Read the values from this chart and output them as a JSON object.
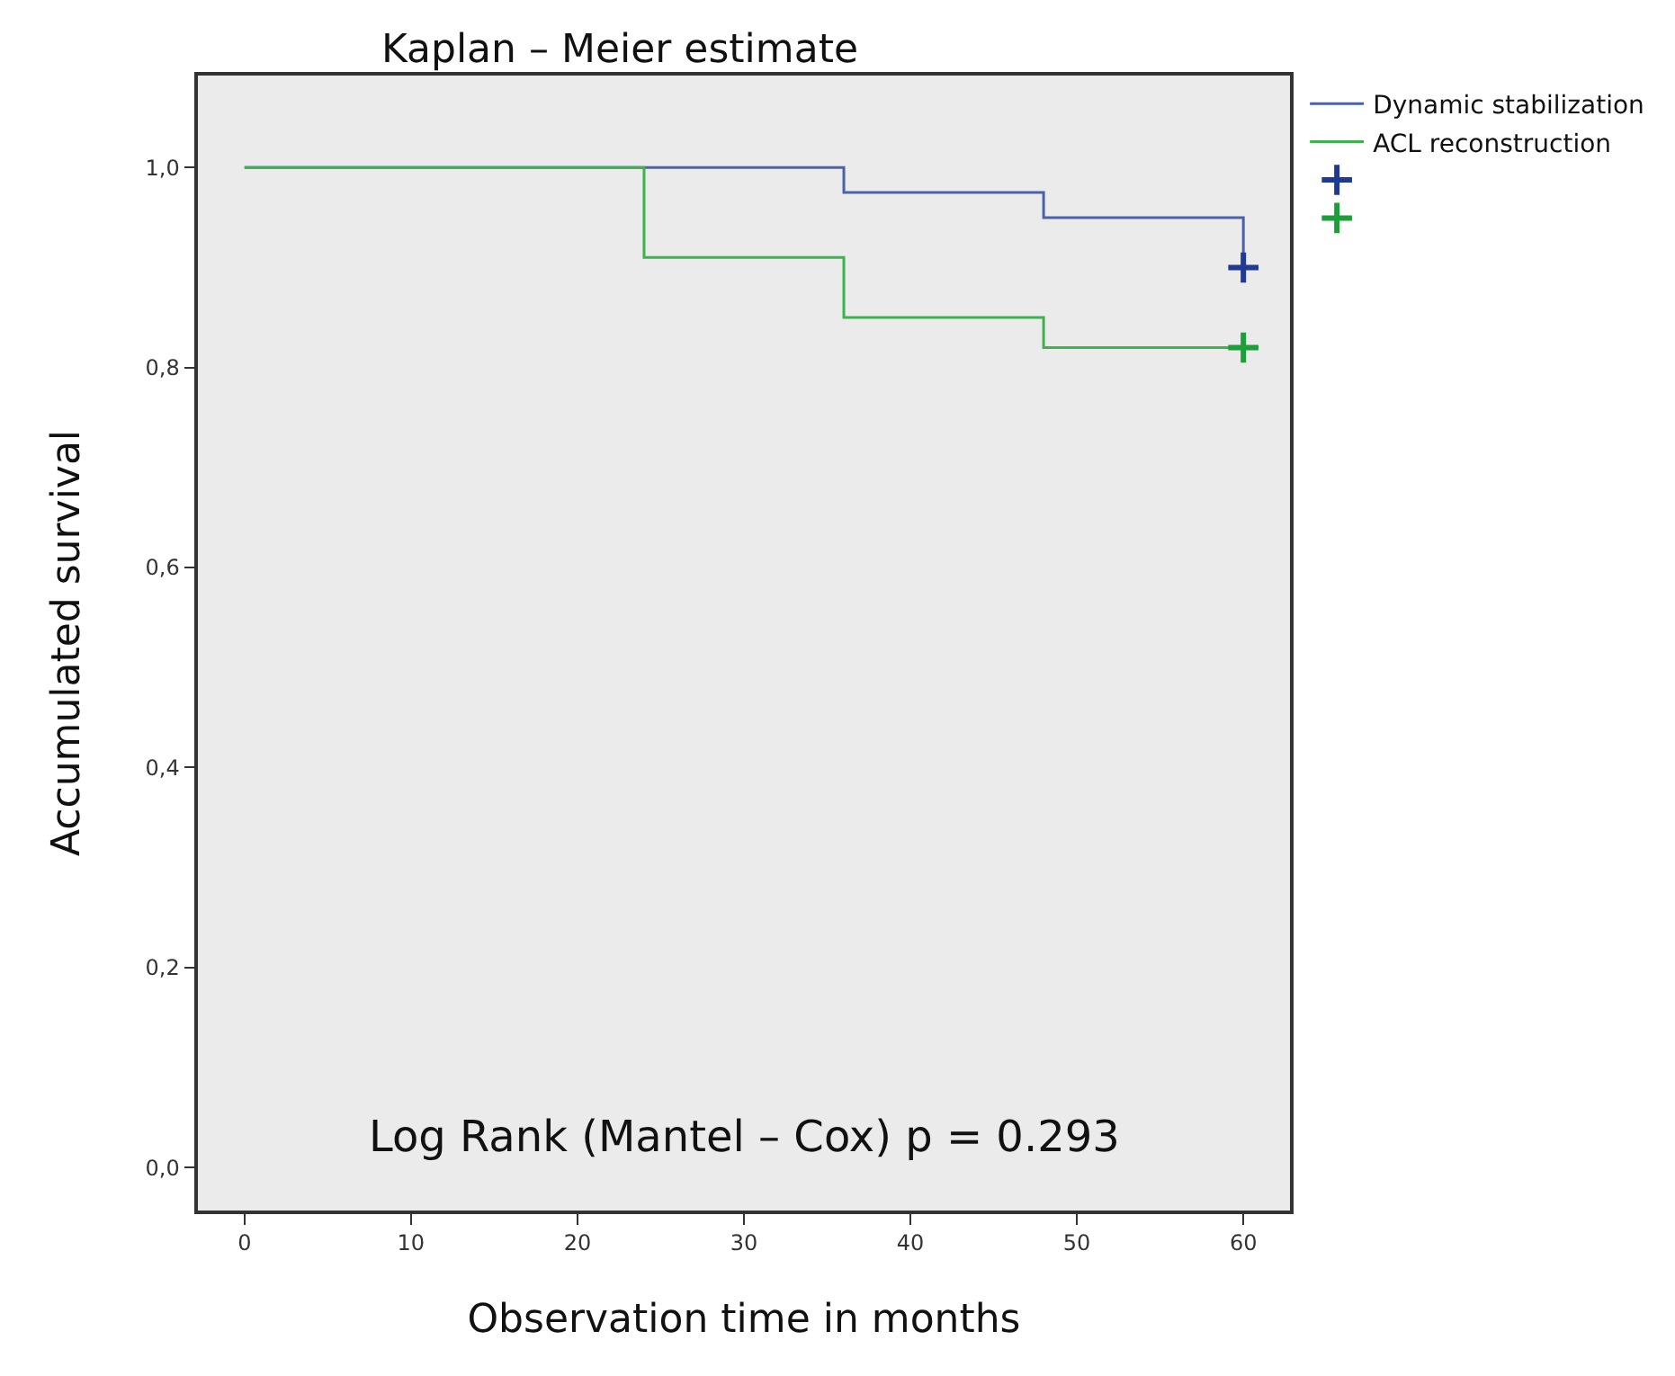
{
  "chart_data": {
    "type": "step",
    "title": "Kaplan – Meier estimate",
    "xlabel": "Observation time in months",
    "ylabel": "Accumulated survival",
    "series": [
      {
        "name": "Dynamic stabilization",
        "color": "#4a62ad",
        "x": [
          0,
          36,
          48,
          60
        ],
        "values": [
          1.0,
          0.975,
          0.95,
          0.9
        ],
        "marker": "none"
      },
      {
        "name": "ACL reconstruction",
        "color": "#3cb44b",
        "x": [
          0,
          24,
          36,
          48,
          60
        ],
        "values": [
          1.0,
          0.91,
          0.85,
          0.82,
          0.82
        ],
        "marker": "none"
      },
      {
        "type": "scatter",
        "color": "#1f3a93",
        "x": [
          60
        ],
        "values": [
          0.9
        ],
        "marker": "cross"
      },
      {
        "type": "scatter",
        "color": "#1e9e3a",
        "x": [
          60
        ],
        "values": [
          0.82
        ],
        "marker": "cross"
      }
    ],
    "xlim": [
      -2.8,
      62.8
    ],
    "xticks": [
      0,
      10,
      20,
      30,
      40,
      50,
      60
    ],
    "ylim": [
      -0.043,
      1.092
    ],
    "yticks": [
      {
        "value": 0,
        "label": "0,0"
      },
      {
        "value": 0.2,
        "label": "0,2"
      },
      {
        "value": 0.4,
        "label": "0,4"
      },
      {
        "value": 0.6,
        "label": "0,6"
      },
      {
        "value": 0.8,
        "label": "0,8"
      },
      {
        "value": 1.0,
        "label": "1,0"
      }
    ],
    "annotations": [
      "Log Rank (Mantel – Cox) p = 0.293"
    ],
    "grid": false,
    "legend": "right"
  }
}
